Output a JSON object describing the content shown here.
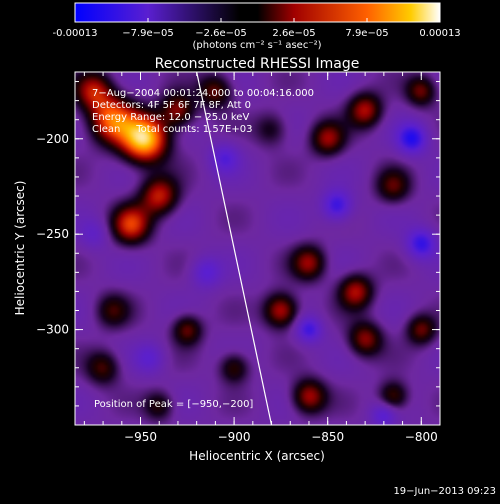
{
  "chart_data": {
    "type": "heatmap",
    "title": "Reconstructed RHESSI Image",
    "colorbar": {
      "ticks": [
        "-0.00013",
        "−7.9e−05",
        "−2.6e−05",
        "2.6e−05",
        "7.9e−05",
        "0.00013"
      ],
      "range": [
        -0.00013,
        0.00013
      ],
      "unit_label": "(photons cm⁻² s⁻¹ asec⁻²)"
    },
    "xlabel": "Heliocentric X (arcsec)",
    "ylabel": "Heliocentric Y (arcsec)",
    "xlim": [
      -985,
      -790
    ],
    "ylim": [
      -350,
      -165
    ],
    "xticks": [
      -950,
      -900,
      -850,
      -800
    ],
    "xtick_labels": [
      "−950",
      "−900",
      "−850",
      "−800"
    ],
    "yticks": [
      -200,
      -250,
      -300
    ],
    "ytick_labels": [
      "−200",
      "−250",
      "−300"
    ],
    "limb_line": [
      [
        -920,
        -165
      ],
      [
        -880,
        -350
      ]
    ],
    "annotations": [
      "7−Aug−2004 00:01:24.000 to 00:04:16.000",
      "Detectors: 4F 5F 6F 7F 8F, Att 0",
      "Energy Range: 12.0 − 25.0 keV",
      "Clean     Total counts: 1.57E+03"
    ],
    "peak_label": "Position of Peak = [−950,−200]",
    "sources": [
      {
        "x": -948,
        "y": -200,
        "amp": 1.0,
        "r": 12
      },
      {
        "x": -965,
        "y": -190,
        "amp": 0.7,
        "r": 12
      },
      {
        "x": -940,
        "y": -230,
        "amp": 0.55,
        "r": 10
      },
      {
        "x": -955,
        "y": -245,
        "amp": 0.6,
        "r": 10
      },
      {
        "x": -975,
        "y": -175,
        "amp": 0.5,
        "r": 10
      },
      {
        "x": -930,
        "y": -185,
        "amp": 0.45,
        "r": 9
      },
      {
        "x": -910,
        "y": -175,
        "amp": 0.4,
        "r": 9
      },
      {
        "x": -880,
        "y": -195,
        "amp": 0.25,
        "r": 9
      },
      {
        "x": -850,
        "y": -200,
        "amp": 0.45,
        "r": 9
      },
      {
        "x": -830,
        "y": -185,
        "amp": 0.5,
        "r": 9
      },
      {
        "x": -800,
        "y": -175,
        "amp": 0.4,
        "r": 8
      },
      {
        "x": -815,
        "y": -225,
        "amp": 0.35,
        "r": 9
      },
      {
        "x": -860,
        "y": -265,
        "amp": 0.45,
        "r": 9
      },
      {
        "x": -835,
        "y": -280,
        "amp": 0.5,
        "r": 9
      },
      {
        "x": -875,
        "y": -290,
        "amp": 0.55,
        "r": 9
      },
      {
        "x": -830,
        "y": -305,
        "amp": 0.45,
        "r": 9
      },
      {
        "x": -800,
        "y": -300,
        "amp": 0.4,
        "r": 8
      },
      {
        "x": -925,
        "y": -300,
        "amp": 0.4,
        "r": 8
      },
      {
        "x": -900,
        "y": -320,
        "amp": 0.35,
        "r": 8
      },
      {
        "x": -860,
        "y": -335,
        "amp": 0.5,
        "r": 9
      },
      {
        "x": -815,
        "y": -335,
        "amp": 0.4,
        "r": 8
      },
      {
        "x": -965,
        "y": -290,
        "amp": 0.3,
        "r": 9
      },
      {
        "x": -970,
        "y": -320,
        "amp": 0.35,
        "r": 9
      },
      {
        "x": -940,
        "y": -340,
        "amp": 0.3,
        "r": 8
      },
      {
        "x": -845,
        "y": -235,
        "amp": -0.45,
        "r": 8
      },
      {
        "x": -805,
        "y": -200,
        "amp": -0.5,
        "r": 8
      },
      {
        "x": -905,
        "y": -210,
        "amp": -0.3,
        "r": 8
      },
      {
        "x": -860,
        "y": -300,
        "amp": -0.4,
        "r": 7
      },
      {
        "x": -800,
        "y": -255,
        "amp": -0.45,
        "r": 8
      },
      {
        "x": -915,
        "y": -270,
        "amp": -0.3,
        "r": 8
      },
      {
        "x": -945,
        "y": -315,
        "amp": -0.25,
        "r": 8
      },
      {
        "x": -975,
        "y": -250,
        "amp": -0.2,
        "r": 8
      },
      {
        "x": -820,
        "y": -345,
        "amp": -0.3,
        "r": 7
      }
    ]
  },
  "footer": {
    "timestamp": "19−Jun−2013 09:23"
  }
}
